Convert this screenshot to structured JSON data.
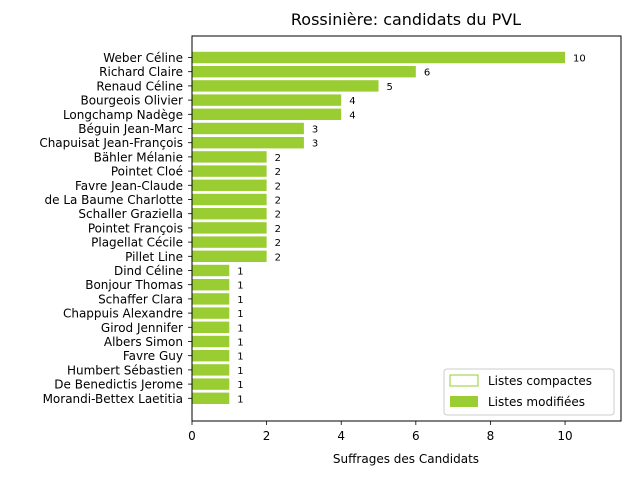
{
  "chart_data": {
    "type": "bar",
    "orientation": "horizontal",
    "title": "Rossinière: candidats du PVL",
    "xlabel": "Suffrages des Candidats",
    "ylabel": "",
    "xlim": [
      0,
      11.5
    ],
    "xticks": [
      0,
      2,
      4,
      6,
      8,
      10
    ],
    "grid": false,
    "legend_position": "bottom-right",
    "bar_color": "#9acd32",
    "categories": [
      "Weber Céline",
      "Richard Claire",
      "Renaud Céline",
      "Bourgeois Olivier",
      "Longchamp Nadège",
      "Béguin Jean-Marc",
      "Chapuisat Jean-François",
      "Bähler Mélanie",
      "Pointet Cloé",
      "Favre Jean-Claude",
      "de La Baume Charlotte",
      "Schaller Graziella",
      "Pointet François",
      "Plagellat Cécile",
      "Pillet Line",
      "Dind Céline",
      "Bonjour Thomas",
      "Schaffer Clara",
      "Chappuis Alexandre",
      "Girod Jennifer",
      "Albers Simon",
      "Favre Guy",
      "Humbert Sébastien",
      "De Benedictis Jerome",
      "Morandi-Bettex Laetitia"
    ],
    "series": [
      {
        "name": "Listes compactes",
        "style": "outline",
        "color": "#9acd32",
        "values": [
          0,
          0,
          0,
          0,
          0,
          0,
          0,
          0,
          0,
          0,
          0,
          0,
          0,
          0,
          0,
          0,
          0,
          0,
          0,
          0,
          0,
          0,
          0,
          0,
          0
        ]
      },
      {
        "name": "Listes modifiées",
        "style": "filled",
        "color": "#9acd32",
        "values": [
          10,
          6,
          5,
          4,
          4,
          3,
          3,
          2,
          2,
          2,
          2,
          2,
          2,
          2,
          2,
          1,
          1,
          1,
          1,
          1,
          1,
          1,
          1,
          1,
          1
        ]
      }
    ],
    "data_labels": [
      "10",
      "6",
      "5",
      "4",
      "4",
      "3",
      "3",
      "2",
      "2",
      "2",
      "2",
      "2",
      "2",
      "2",
      "2",
      "1",
      "1",
      "1",
      "1",
      "1",
      "1",
      "1",
      "1",
      "1",
      "1"
    ]
  }
}
